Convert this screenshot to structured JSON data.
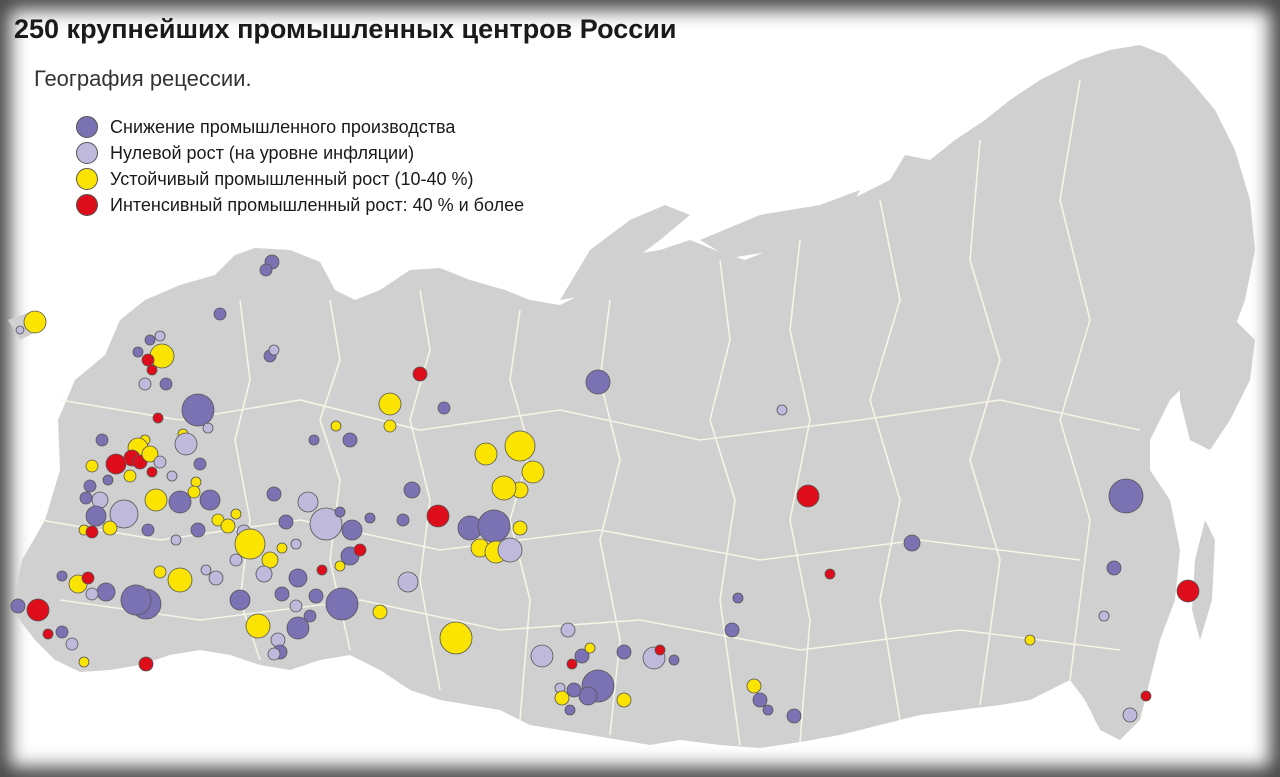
{
  "map": {
    "title": "250 крупнейших промышленных центров России",
    "subtitle": "География рецессии.",
    "colors": {
      "land": "#d0d0d0",
      "border": "#f6f4e4",
      "decline": "#7b72b3",
      "zero": "#bfb9dc",
      "growth": "#fbe402",
      "intense": "#de0d1c"
    },
    "legend": [
      {
        "category": "decline",
        "label": "Снижение промышленного производства"
      },
      {
        "category": "zero",
        "label": "Нулевой рост (на уровне инфляции)"
      },
      {
        "category": "growth",
        "label": "Устойчивый промышленный рост (10-40 %)"
      },
      {
        "category": "intense",
        "label": "Интенсивный промышленный рост: 40 % и более"
      }
    ]
  }
}
